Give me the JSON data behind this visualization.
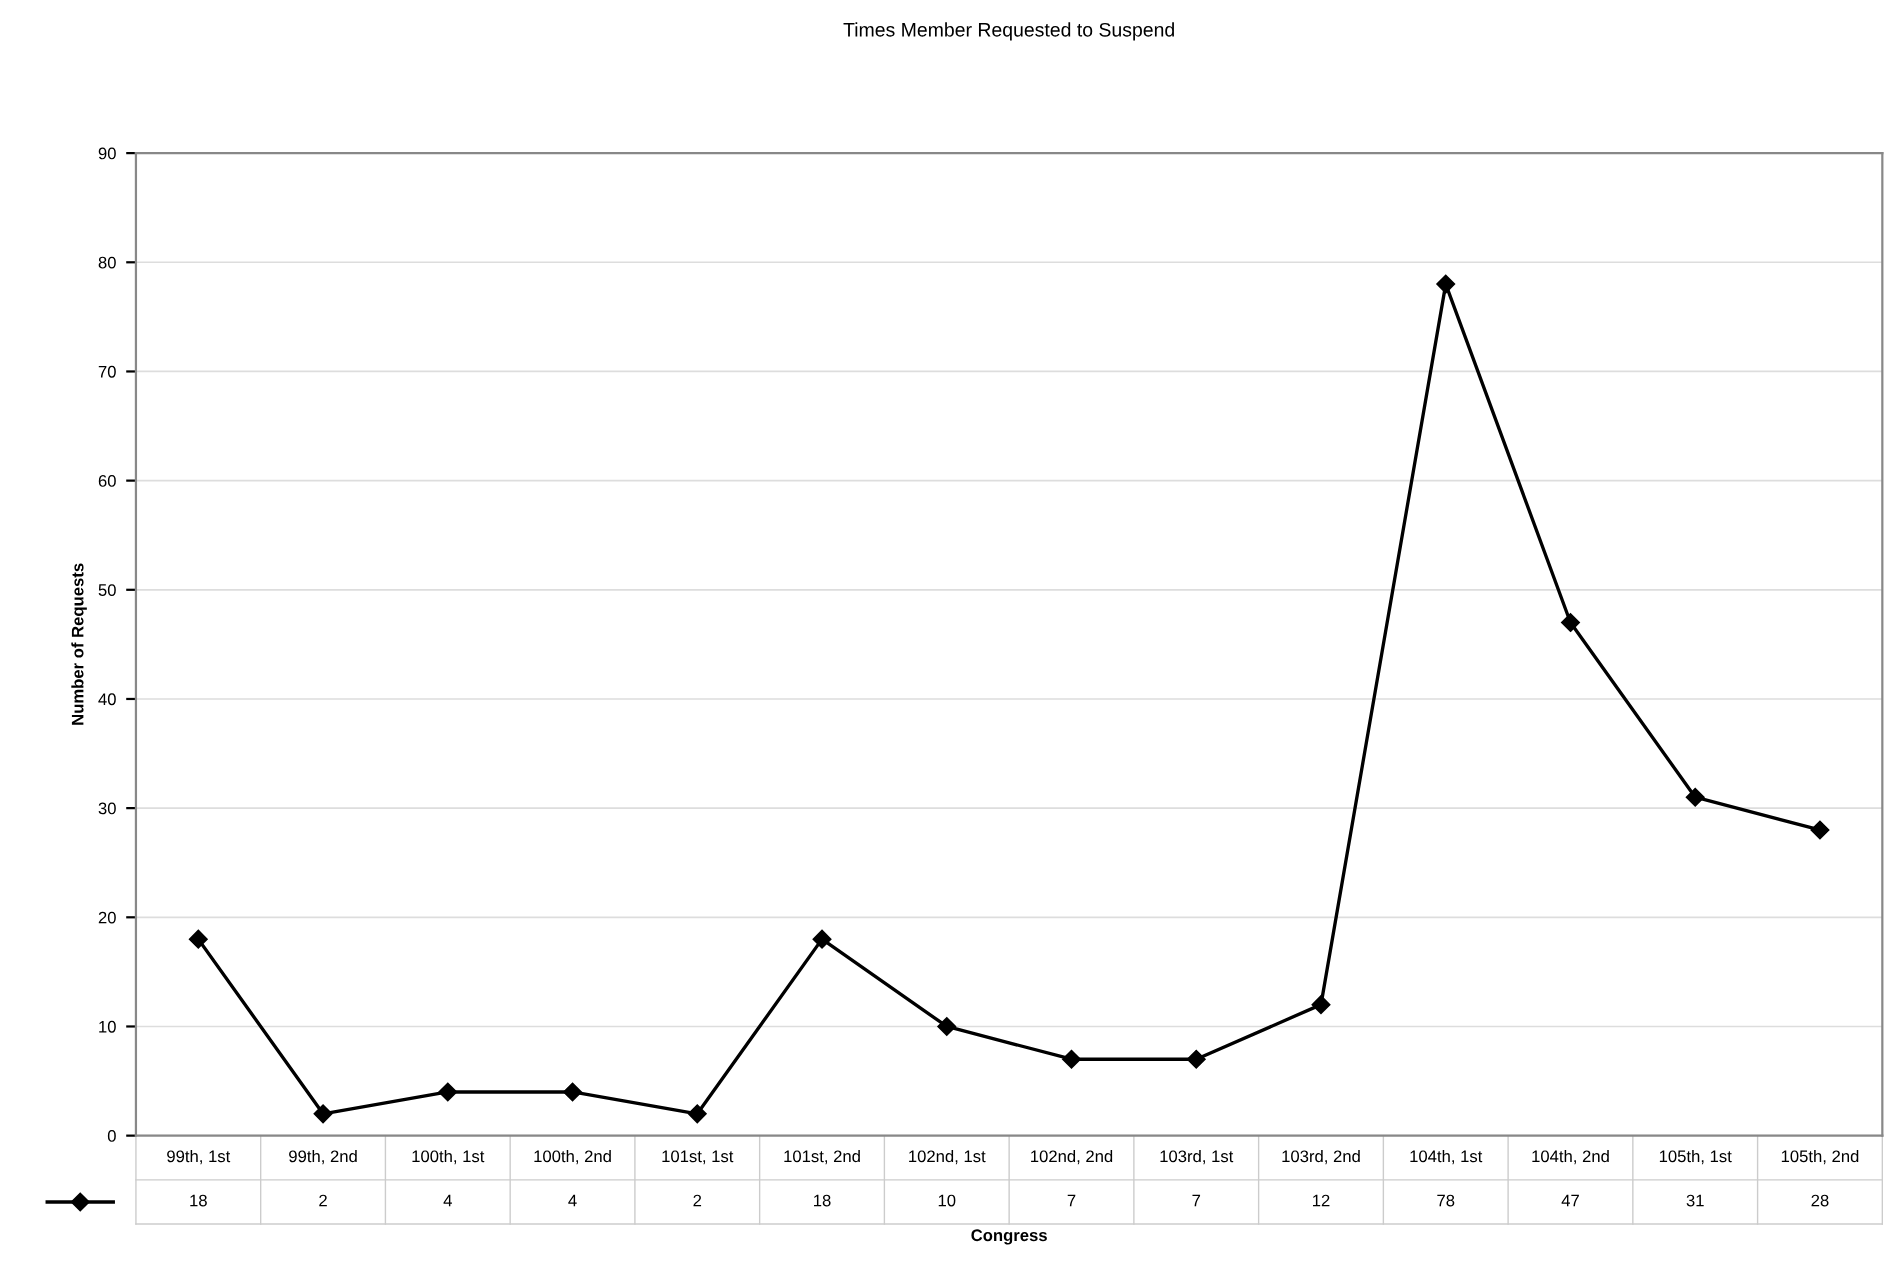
{
  "chart_data": {
    "type": "line",
    "title": "Times Member Requested to Suspend",
    "xlabel": "Congress",
    "ylabel": "Number of Requests",
    "categories": [
      "99th, 1st",
      "99th, 2nd",
      "100th, 1st",
      "100th, 2nd",
      "101st, 1st",
      "101st, 2nd",
      "102nd, 1st",
      "102nd, 2nd",
      "103rd, 1st",
      "103rd, 2nd",
      "104th, 1st",
      "104th, 2nd",
      "105th, 1st",
      "105th, 2nd"
    ],
    "series": [
      {
        "color": "#000000",
        "values": [
          18,
          2,
          4,
          4,
          2,
          18,
          10,
          7,
          7,
          12,
          78,
          47,
          31,
          28
        ]
      }
    ],
    "ylim": [
      0,
      90
    ],
    "yticks": [
      0,
      10,
      20,
      30,
      40,
      50,
      60,
      70,
      80,
      90
    ],
    "grid": "y",
    "marker": "diamond",
    "line_style": "solid",
    "data_labels": true
  }
}
